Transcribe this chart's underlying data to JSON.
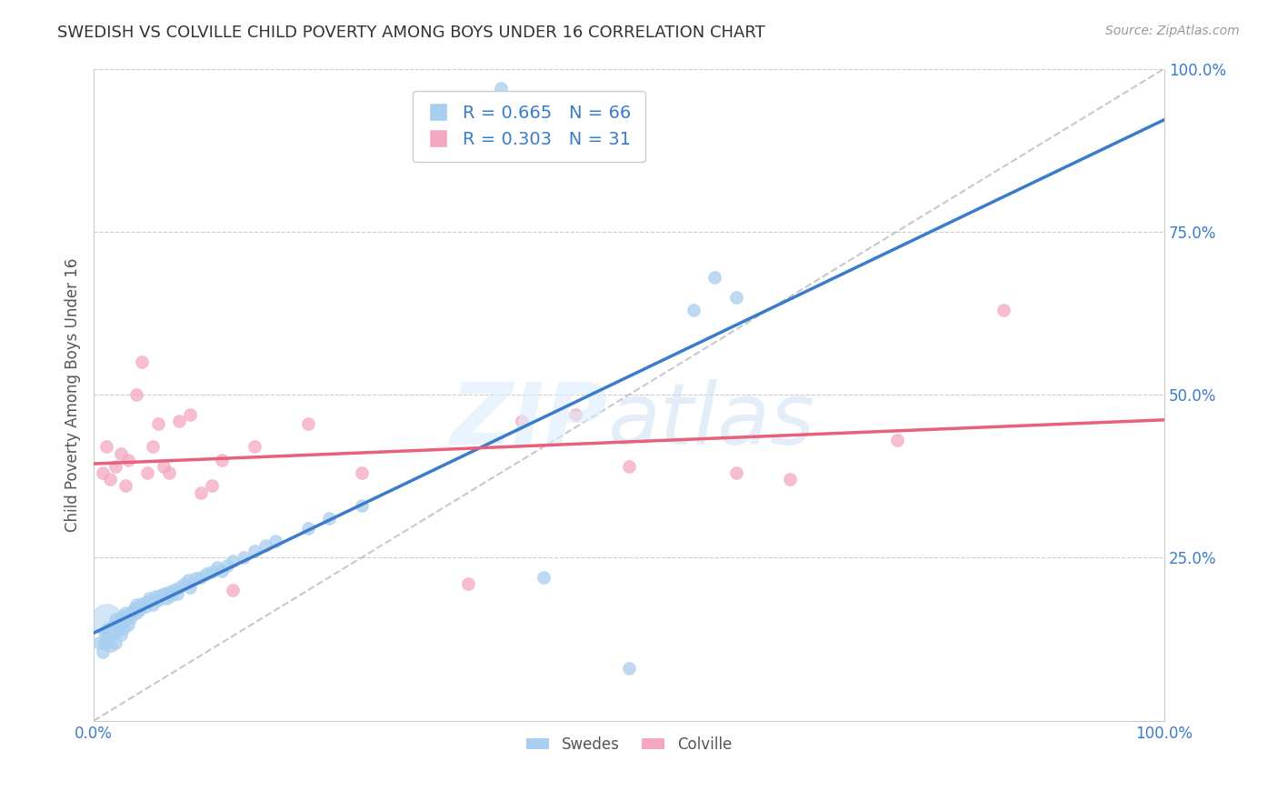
{
  "title": "SWEDISH VS COLVILLE CHILD POVERTY AMONG BOYS UNDER 16 CORRELATION CHART",
  "source": "Source: ZipAtlas.com",
  "ylabel": "Child Poverty Among Boys Under 16",
  "xlim": [
    0,
    1.0
  ],
  "ylim": [
    0,
    1.0
  ],
  "background_color": "#ffffff",
  "grid_color": "#cccccc",
  "swedes_color": "#a8cef0",
  "colville_color": "#f4a8bf",
  "swedes_line_color": "#3a7cc9",
  "colville_line_color": "#e8607a",
  "diagonal_color": "#bbbbbb",
  "R_swedes": 0.665,
  "N_swedes": 66,
  "R_colville": 0.303,
  "N_colville": 31,
  "swedes_x": [
    0.005,
    0.008,
    0.01,
    0.01,
    0.012,
    0.013,
    0.015,
    0.016,
    0.018,
    0.02,
    0.02,
    0.022,
    0.023,
    0.025,
    0.025,
    0.026,
    0.028,
    0.03,
    0.03,
    0.032,
    0.033,
    0.035,
    0.036,
    0.038,
    0.04,
    0.04,
    0.042,
    0.045,
    0.048,
    0.05,
    0.052,
    0.055,
    0.058,
    0.06,
    0.062,
    0.065,
    0.068,
    0.07,
    0.072,
    0.075,
    0.078,
    0.08,
    0.085,
    0.088,
    0.09,
    0.095,
    0.1,
    0.105,
    0.11,
    0.115,
    0.12,
    0.125,
    0.13,
    0.14,
    0.15,
    0.16,
    0.17,
    0.2,
    0.22,
    0.25,
    0.38,
    0.42,
    0.5,
    0.56,
    0.58,
    0.6
  ],
  "swedes_y": [
    0.12,
    0.105,
    0.135,
    0.118,
    0.125,
    0.14,
    0.13,
    0.115,
    0.145,
    0.12,
    0.155,
    0.138,
    0.148,
    0.152,
    0.132,
    0.16,
    0.142,
    0.155,
    0.165,
    0.148,
    0.162,
    0.158,
    0.168,
    0.172,
    0.165,
    0.178,
    0.17,
    0.18,
    0.175,
    0.182,
    0.188,
    0.178,
    0.19,
    0.185,
    0.192,
    0.195,
    0.188,
    0.198,
    0.192,
    0.2,
    0.195,
    0.205,
    0.21,
    0.215,
    0.205,
    0.218,
    0.22,
    0.225,
    0.228,
    0.235,
    0.23,
    0.238,
    0.245,
    0.25,
    0.26,
    0.268,
    0.275,
    0.295,
    0.31,
    0.33,
    0.97,
    0.22,
    0.08,
    0.63,
    0.68,
    0.65
  ],
  "colville_x": [
    0.008,
    0.012,
    0.015,
    0.02,
    0.025,
    0.03,
    0.032,
    0.04,
    0.045,
    0.05,
    0.055,
    0.06,
    0.065,
    0.07,
    0.08,
    0.09,
    0.1,
    0.11,
    0.12,
    0.13,
    0.15,
    0.2,
    0.25,
    0.35,
    0.4,
    0.45,
    0.5,
    0.6,
    0.65,
    0.75,
    0.85
  ],
  "colville_y": [
    0.38,
    0.42,
    0.37,
    0.39,
    0.41,
    0.36,
    0.4,
    0.5,
    0.55,
    0.38,
    0.42,
    0.455,
    0.39,
    0.38,
    0.46,
    0.47,
    0.35,
    0.36,
    0.4,
    0.2,
    0.42,
    0.455,
    0.38,
    0.21,
    0.46,
    0.47,
    0.39,
    0.38,
    0.37,
    0.43,
    0.63
  ],
  "swedes_marker_size": 100,
  "colville_marker_size": 100,
  "legend_fontsize": 14,
  "title_fontsize": 13,
  "label_fontsize": 12,
  "watermark_zip_color": "#d8e8f5",
  "watermark_atlas_color": "#c8dff0"
}
